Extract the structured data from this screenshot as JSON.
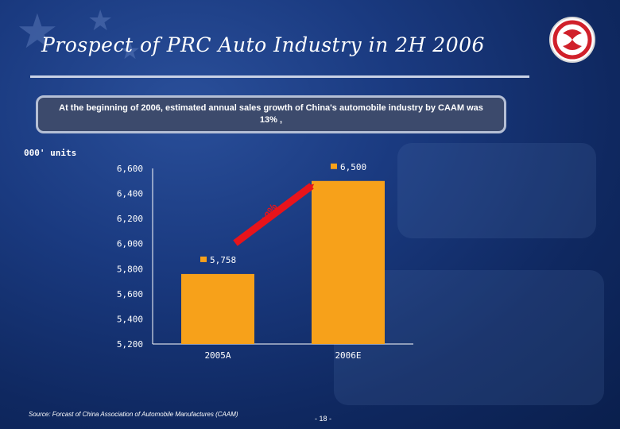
{
  "header": {
    "title": "Prospect of  PRC Auto Industry in 2H 2006",
    "logo_icon": "dongfeng-logo-icon"
  },
  "callout": {
    "text": "At the beginning of 2006, estimated annual sales growth of China's automobile industry by CAAM was 13% ,"
  },
  "units_label": "000' units",
  "chart_data": {
    "type": "bar",
    "title": "",
    "xlabel": "",
    "ylabel": "000' units",
    "categories": [
      "2005A",
      "2006E"
    ],
    "values": [
      5758,
      6500
    ],
    "value_labels": [
      "5,758",
      "6,500"
    ],
    "ylim": [
      5200,
      6600
    ],
    "yticks": [
      5200,
      5400,
      5600,
      5800,
      6000,
      6200,
      6400,
      6600
    ],
    "ytick_labels": [
      "5,200",
      "5,400",
      "5,600",
      "5,800",
      "6,000",
      "6,200",
      "6,400",
      "6,600"
    ],
    "growth_annotation": "13%",
    "grid": false,
    "colors": {
      "bar": "#F7A11A",
      "arrow": "#E8141B",
      "text": "#FFFFFF"
    }
  },
  "footer": {
    "source": "Source:  Forcast of China Association of Automobile Manufactures (CAAM)",
    "page": "- 18 -"
  }
}
